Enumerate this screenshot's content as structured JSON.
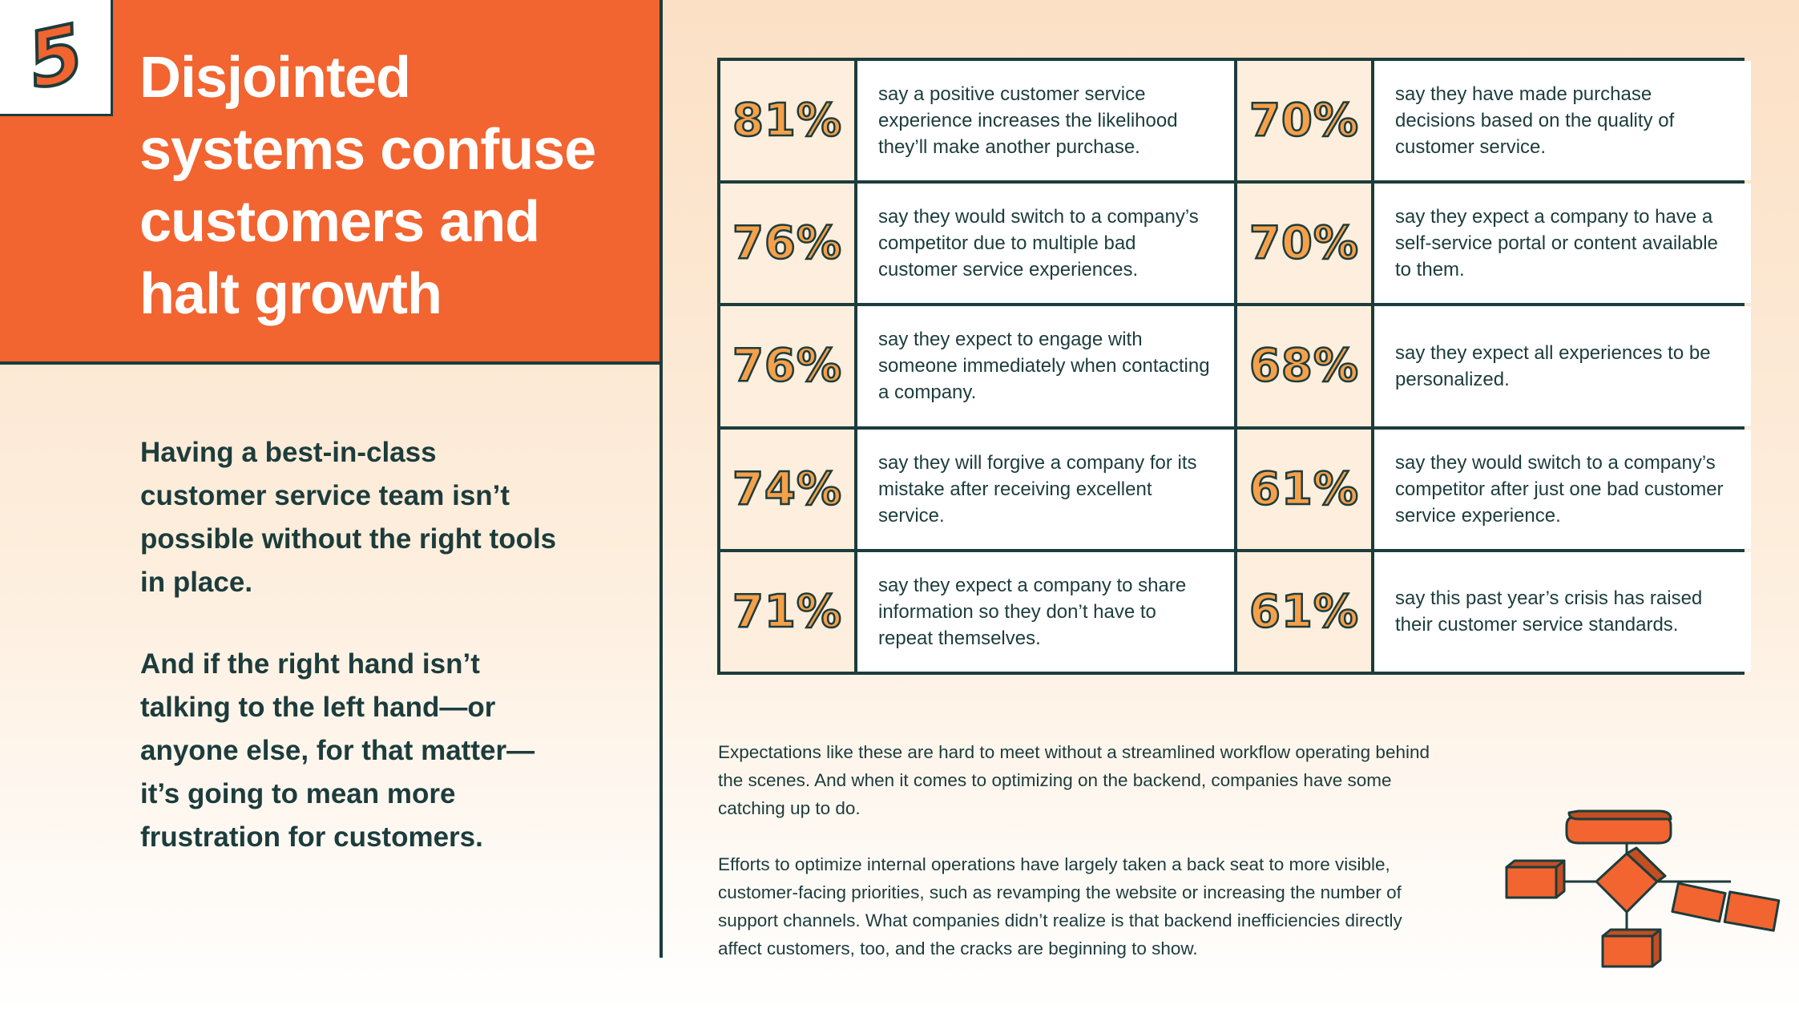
{
  "badge": {
    "number": "5"
  },
  "title": "Disjointed systems confuse customers and halt growth",
  "intro": [
    "Having a best-in-class customer service team isn’t possible without the right tools in place.",
    "And if the right hand isn’t talking to the left hand—or anyone else, for that matter—it’s going to mean more frustration for customers."
  ],
  "stats": [
    {
      "percent": "81%",
      "text": "say a positive customer service experience increases the likelihood they’ll make another purchase."
    },
    {
      "percent": "70%",
      "text": "say they have made purchase decisions based on the quality of customer service."
    },
    {
      "percent": "76%",
      "text": "say they would switch to a company’s competitor due to multiple bad customer service experiences."
    },
    {
      "percent": "70%",
      "text": "say they expect a company to have a self-service portal or content available to them."
    },
    {
      "percent": "76%",
      "text": "say they expect to engage with someone immediately when contacting a company."
    },
    {
      "percent": "68%",
      "text": "say they expect all experiences to be personalized."
    },
    {
      "percent": "74%",
      "text": "say they will forgive a company for its mistake after receiving excellent service."
    },
    {
      "percent": "61%",
      "text": "say they would switch to a company’s competitor after just one bad customer service experience."
    },
    {
      "percent": "71%",
      "text": "say they expect a company to share information so they don’t have to repeat themselves."
    },
    {
      "percent": "61%",
      "text": "say this past year’s crisis has raised their customer service standards."
    }
  ],
  "body": [
    "Expectations like these are hard to meet without a streamlined workflow operating behind the scenes. And when it comes to optimizing on the backend, companies have some catching up to do.",
    "Efforts to optimize internal operations have largely taken a back seat to more visible, customer-facing priorities, such as revamping the website or increasing the number of support channels. What companies didn’t realize is that backend inefficiencies directly affect customers, too, and the cracks are beginning to show."
  ],
  "colors": {
    "accent": "#f26430",
    "dark": "#1d3c3c",
    "percent_fill": "#f5a04a"
  }
}
